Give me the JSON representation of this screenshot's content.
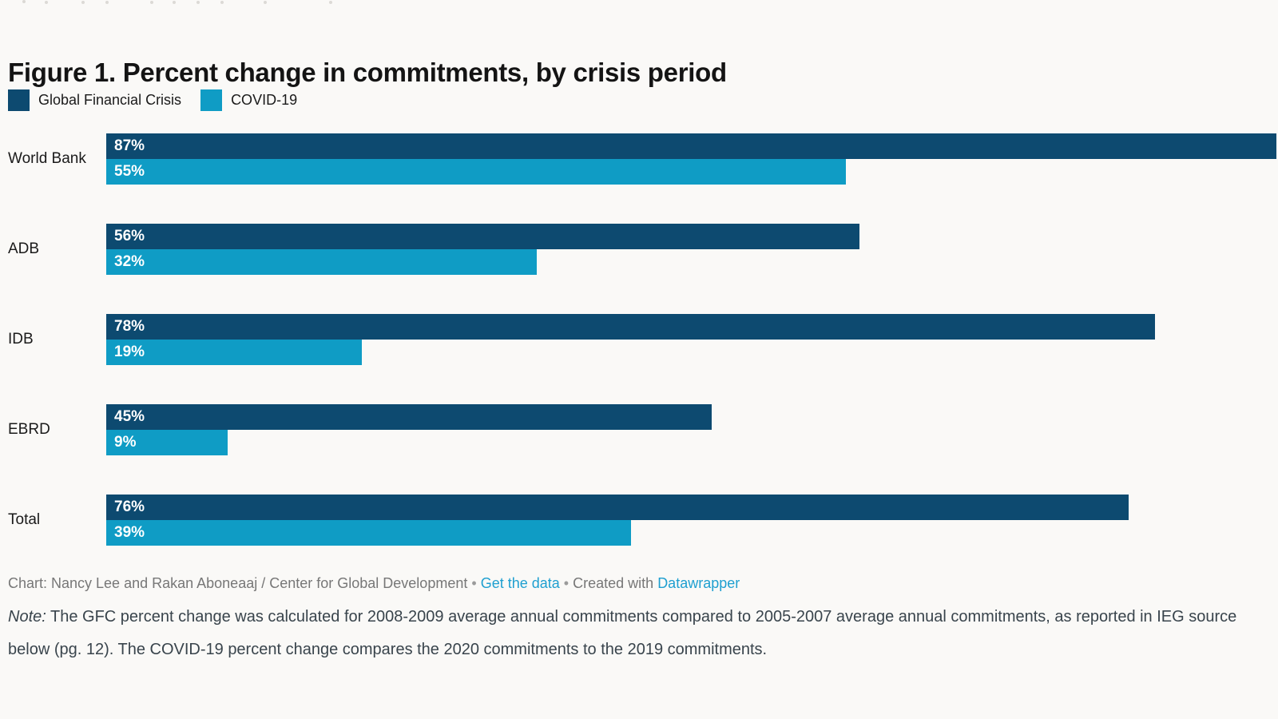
{
  "page": {
    "background": "#faf9f7"
  },
  "title": "Figure 1. Percent change in commitments, by crisis period",
  "legend": [
    {
      "label": "Global Financial Crisis",
      "color": "#0d4a70"
    },
    {
      "label": "COVID-19",
      "color": "#0f9cc5"
    }
  ],
  "chart_data": {
    "type": "bar",
    "orientation": "horizontal",
    "title": "Figure 1. Percent change in commitments, by crisis period",
    "categories": [
      "World Bank",
      "ADB",
      "IDB",
      "EBRD",
      "Total"
    ],
    "series": [
      {
        "name": "Global Financial Crisis",
        "color": "#0d4a70",
        "values": [
          87,
          56,
          78,
          45,
          76
        ]
      },
      {
        "name": "COVID-19",
        "color": "#0f9cc5",
        "values": [
          55,
          32,
          19,
          9,
          39
        ]
      }
    ],
    "value_suffix": "%",
    "xlim": [
      0,
      87
    ],
    "grid": false,
    "legend_position": "top",
    "value_labels": "inside-left"
  },
  "footer": {
    "byline": "Chart: Nancy Lee and Rakan Aboneaaj / Center for Global Development",
    "separator": "•",
    "get_data_label": "Get the data",
    "created_with": "Created with",
    "datawrapper_label": "Datawrapper",
    "link_color": "#1e9fd0"
  },
  "note": {
    "label": "Note:",
    "text": "The GFC percent change was calculated for 2008-2009 average annual commitments compared to 2005-2007 average annual commitments, as reported in IEG source below (pg. 12). The COVID-19 percent change compares the 2020 commitments to the 2019 commitments."
  }
}
